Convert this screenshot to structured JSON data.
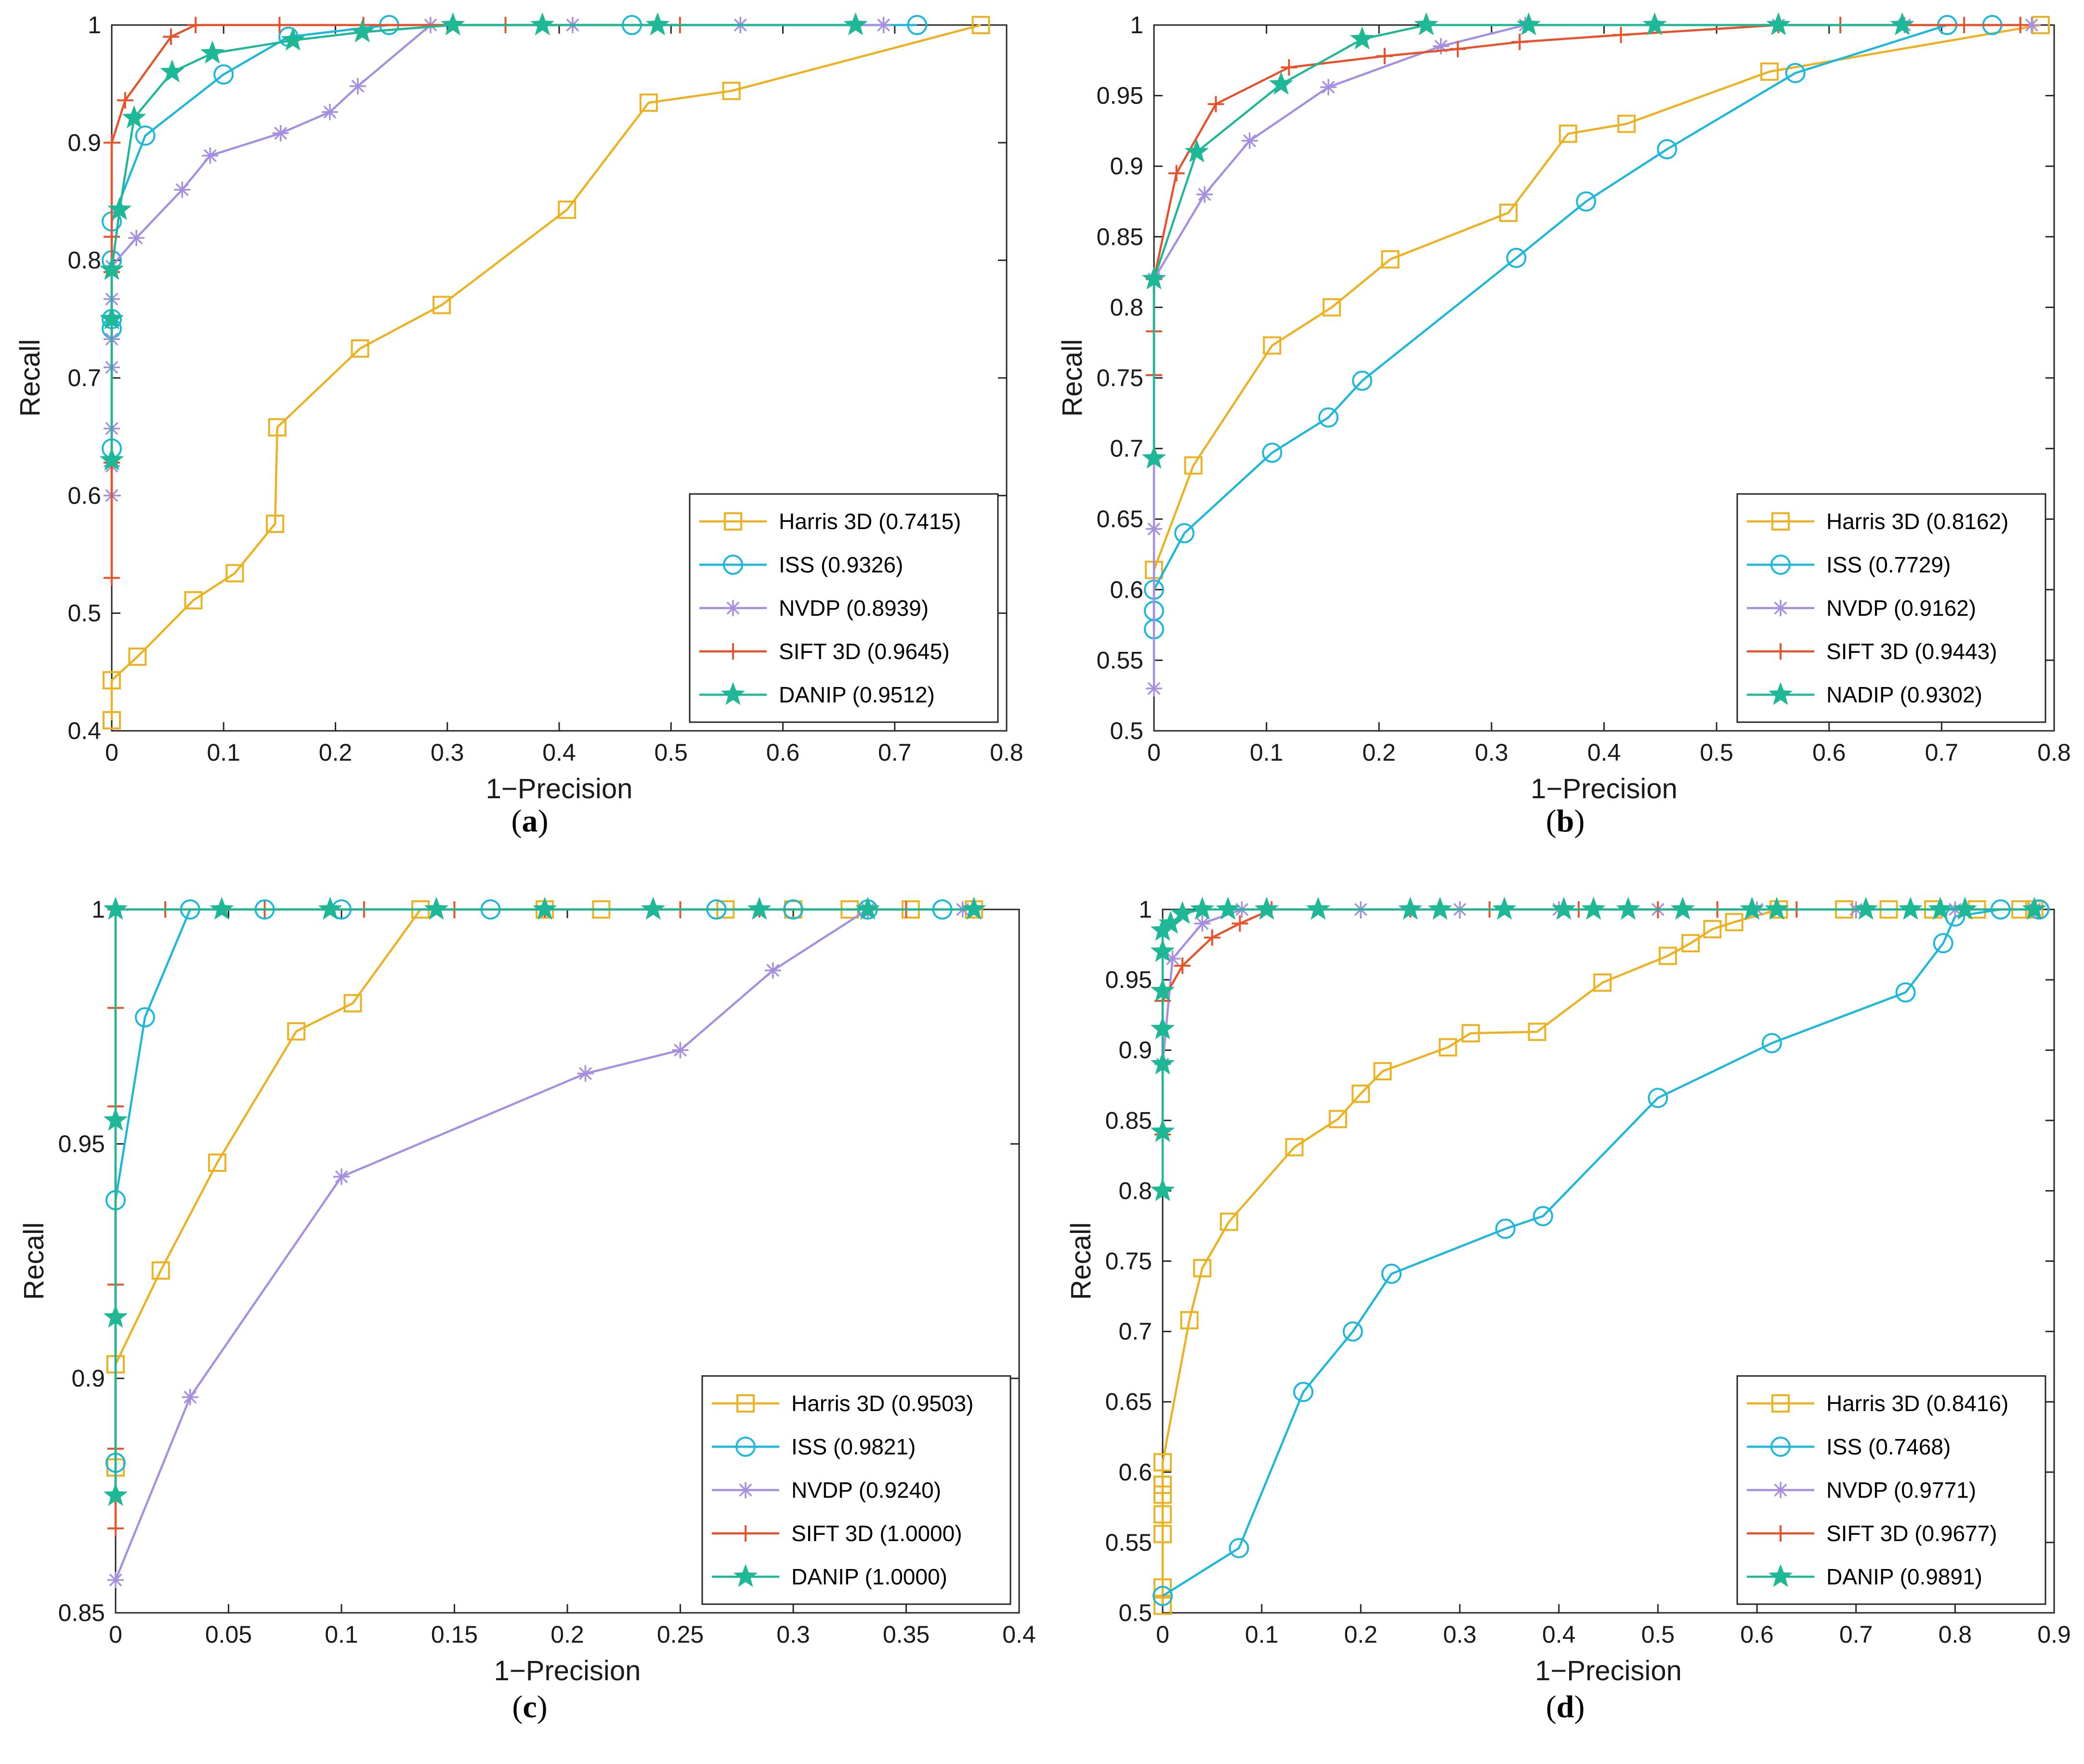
{
  "colors": {
    "harris": "#EDB120",
    "iss": "#1CB8DC",
    "nvdp": "#A68FE0",
    "sift": "#E8522A",
    "danip": "#1FB896"
  },
  "chart_data": [
    {
      "type": "line",
      "caption": "a",
      "xlabel": "1−Precision",
      "ylabel": "Recall",
      "xlim": [
        0,
        0.8
      ],
      "ylim": [
        0.4,
        1.0
      ],
      "xticks": [
        0,
        0.1,
        0.2,
        0.3,
        0.4,
        0.5,
        0.6,
        0.7,
        0.8
      ],
      "xtick_labels": [
        "0",
        "0.1",
        "0.2",
        "0.3",
        "0.4",
        "0.5",
        "0.6",
        "0.7",
        "0.8"
      ],
      "yticks": [
        0.4,
        0.5,
        0.6,
        0.7,
        0.8,
        0.9,
        1.0
      ],
      "ytick_labels": [
        "0.4",
        "0.5",
        "0.6",
        "0.7",
        "0.8",
        "0.9",
        "1"
      ],
      "legend_position": "bottom-right",
      "series": [
        {
          "name": "Harris 3D (0.7415)",
          "marker": "square",
          "color_key": "harris",
          "x": [
            0,
            0,
            0.023,
            0.073,
            0.11,
            0.146,
            0.148,
            0.222,
            0.295,
            0.407,
            0.48,
            0.554,
            0.777
          ],
          "y": [
            0.409,
            0.443,
            0.463,
            0.511,
            0.534,
            0.576,
            0.658,
            0.725,
            0.762,
            0.843,
            0.934,
            0.944,
            1.0
          ]
        },
        {
          "name": "ISS (0.9326)",
          "marker": "circle",
          "color_key": "iss",
          "x": [
            0,
            0,
            0,
            0,
            0,
            0.03,
            0.1,
            0.158,
            0.248,
            0.465,
            0.72
          ],
          "y": [
            0.64,
            0.742,
            0.75,
            0.8,
            0.833,
            0.906,
            0.958,
            0.99,
            1.0,
            1.0,
            1.0
          ]
        },
        {
          "name": "NVDP (0.8939)",
          "marker": "asterisk",
          "color_key": "nvdp",
          "x": [
            0,
            0,
            0,
            0,
            0,
            0,
            0,
            0.022,
            0.063,
            0.088,
            0.151,
            0.195,
            0.22,
            0.285,
            0.412,
            0.562,
            0.69
          ],
          "y": [
            0.6,
            0.625,
            0.657,
            0.709,
            0.733,
            0.767,
            0.795,
            0.819,
            0.86,
            0.889,
            0.908,
            0.926,
            0.948,
            1.0,
            1.0,
            1.0,
            1.0
          ]
        },
        {
          "name": "SIFT 3D (0.9645)",
          "marker": "plus",
          "color_key": "sift",
          "x": [
            0,
            0,
            0,
            0,
            0,
            0.012,
            0.053,
            0.075,
            0.15,
            0.225,
            0.352,
            0.508
          ],
          "y": [
            0.53,
            0.628,
            0.79,
            0.82,
            0.9,
            0.936,
            0.99,
            1.0,
            1.0,
            1.0,
            1.0,
            1.0
          ]
        },
        {
          "name": "DANIP (0.9512)",
          "marker": "star",
          "color_key": "danip",
          "x": [
            0,
            0,
            0,
            0.007,
            0.02,
            0.054,
            0.09,
            0.162,
            0.224,
            0.305,
            0.385,
            0.488,
            0.665
          ],
          "y": [
            0.63,
            0.75,
            0.792,
            0.843,
            0.921,
            0.96,
            0.976,
            0.987,
            0.994,
            1.0,
            1.0,
            1.0,
            1.0
          ]
        }
      ]
    },
    {
      "type": "line",
      "caption": "b",
      "xlabel": "1−Precision",
      "ylabel": "Recall",
      "xlim": [
        0,
        0.8
      ],
      "ylim": [
        0.5,
        1.0
      ],
      "xticks": [
        0,
        0.1,
        0.2,
        0.3,
        0.4,
        0.5,
        0.6,
        0.7,
        0.8
      ],
      "xtick_labels": [
        "0",
        "0.1",
        "0.2",
        "0.3",
        "0.4",
        "0.5",
        "0.6",
        "0.7",
        "0.8"
      ],
      "yticks": [
        0.5,
        0.55,
        0.6,
        0.65,
        0.7,
        0.75,
        0.8,
        0.85,
        0.9,
        0.95,
        1.0
      ],
      "ytick_labels": [
        "0.5",
        "0.55",
        "0.6",
        "0.65",
        "0.7",
        "0.75",
        "0.8",
        "0.85",
        "0.9",
        "0.95",
        "1"
      ],
      "legend_position": "bottom-right",
      "series": [
        {
          "name": "Harris 3D (0.8162)",
          "marker": "square",
          "color_key": "harris",
          "x": [
            0,
            0.035,
            0.105,
            0.158,
            0.21,
            0.315,
            0.368,
            0.42,
            0.547,
            0.788
          ],
          "y": [
            0.614,
            0.688,
            0.773,
            0.8,
            0.834,
            0.867,
            0.923,
            0.93,
            0.967,
            1.0
          ]
        },
        {
          "name": "ISS (0.7729)",
          "marker": "circle",
          "color_key": "iss",
          "x": [
            0,
            0,
            0,
            0.027,
            0.105,
            0.155,
            0.185,
            0.322,
            0.384,
            0.456,
            0.57,
            0.705,
            0.745
          ],
          "y": [
            0.572,
            0.585,
            0.6,
            0.64,
            0.697,
            0.722,
            0.748,
            0.835,
            0.875,
            0.912,
            0.966,
            1.0,
            1.0
          ]
        },
        {
          "name": "NVDP (0.9162)",
          "marker": "asterisk",
          "color_key": "nvdp",
          "x": [
            0,
            0,
            0,
            0.045,
            0.085,
            0.155,
            0.255,
            0.33,
            0.555,
            0.667,
            0.78
          ],
          "y": [
            0.53,
            0.643,
            0.82,
            0.88,
            0.918,
            0.956,
            0.985,
            1.0,
            1.0,
            1.0,
            1.0
          ]
        },
        {
          "name": "SIFT 3D (0.9443)",
          "marker": "plus",
          "color_key": "sift",
          "x": [
            0,
            0,
            0,
            0.02,
            0.055,
            0.12,
            0.205,
            0.27,
            0.325,
            0.415,
            0.555,
            0.61,
            0.72,
            0.77
          ],
          "y": [
            0.752,
            0.783,
            0.82,
            0.895,
            0.944,
            0.97,
            0.978,
            0.983,
            0.988,
            0.993,
            1.0,
            1.0,
            1.0,
            1.0
          ]
        },
        {
          "name": "NADIP (0.9302)",
          "marker": "star",
          "color_key": "danip",
          "x": [
            0,
            0,
            0.038,
            0.113,
            0.185,
            0.242,
            0.333,
            0.445,
            0.555,
            0.665
          ],
          "y": [
            0.693,
            0.82,
            0.91,
            0.958,
            0.99,
            1.0,
            1.0,
            1.0,
            1.0,
            1.0
          ]
        }
      ]
    },
    {
      "type": "line",
      "caption": "c",
      "xlabel": "1−Precision",
      "ylabel": "Recall",
      "xlim": [
        0,
        0.4
      ],
      "ylim": [
        0.85,
        1.0
      ],
      "xticks": [
        0,
        0.05,
        0.1,
        0.15,
        0.2,
        0.25,
        0.3,
        0.35,
        0.4
      ],
      "xtick_labels": [
        "0",
        "0.05",
        "0.1",
        "0.15",
        "0.2",
        "0.25",
        "0.3",
        "0.35",
        "0.4"
      ],
      "yticks": [
        0.85,
        0.9,
        0.95,
        1.0
      ],
      "ytick_labels": [
        "0.85",
        "0.9",
        "0.95",
        "1"
      ],
      "legend_position": "bottom-right",
      "series": [
        {
          "name": "Harris 3D (0.9503)",
          "marker": "square",
          "color_key": "harris",
          "x": [
            0,
            0,
            0.02,
            0.045,
            0.08,
            0.105,
            0.135,
            0.19,
            0.215,
            0.27,
            0.3,
            0.325,
            0.352,
            0.38
          ],
          "y": [
            0.881,
            0.903,
            0.923,
            0.946,
            0.974,
            0.98,
            1.0,
            1.0,
            1.0,
            1.0,
            1.0,
            1.0,
            1.0,
            1.0
          ]
        },
        {
          "name": "ISS (0.9821)",
          "marker": "circle",
          "color_key": "iss",
          "x": [
            0,
            0,
            0.013,
            0.033,
            0.066,
            0.1,
            0.166,
            0.266,
            0.3,
            0.333,
            0.366
          ],
          "y": [
            0.882,
            0.938,
            0.977,
            1.0,
            1.0,
            1.0,
            1.0,
            1.0,
            1.0,
            1.0,
            1.0
          ]
        },
        {
          "name": "NVDP (0.9240)",
          "marker": "asterisk",
          "color_key": "nvdp",
          "x": [
            0,
            0.033,
            0.1,
            0.208,
            0.25,
            0.291,
            0.333,
            0.375
          ],
          "y": [
            0.857,
            0.896,
            0.943,
            0.965,
            0.97,
            0.987,
            1.0,
            1.0
          ]
        },
        {
          "name": "SIFT 3D (1.0000)",
          "marker": "plus",
          "color_key": "sift",
          "x": [
            0,
            0,
            0,
            0,
            0,
            0,
            0.022,
            0.066,
            0.11,
            0.15,
            0.19,
            0.25,
            0.285,
            0.35
          ],
          "y": [
            0.868,
            0.885,
            0.92,
            0.958,
            0.979,
            1.0,
            1.0,
            1.0,
            1.0,
            1.0,
            1.0,
            1.0,
            1.0,
            1.0
          ]
        },
        {
          "name": "DANIP (1.0000)",
          "marker": "star",
          "color_key": "danip",
          "x": [
            0,
            0,
            0,
            0,
            0.047,
            0.095,
            0.142,
            0.19,
            0.238,
            0.285,
            0.333,
            0.38
          ],
          "y": [
            0.875,
            0.913,
            0.955,
            1.0,
            1.0,
            1.0,
            1.0,
            1.0,
            1.0,
            1.0,
            1.0,
            1.0
          ]
        }
      ]
    },
    {
      "type": "line",
      "caption": "d",
      "xlabel": "1−Precision",
      "ylabel": "Recall",
      "xlim": [
        0,
        0.9
      ],
      "ylim": [
        0.5,
        1.0
      ],
      "xticks": [
        0,
        0.1,
        0.2,
        0.3,
        0.4,
        0.5,
        0.6,
        0.7,
        0.8,
        0.9
      ],
      "xtick_labels": [
        "0",
        "0.1",
        "0.2",
        "0.3",
        "0.4",
        "0.5",
        "0.6",
        "0.7",
        "0.8",
        "0.9"
      ],
      "yticks": [
        0.5,
        0.55,
        0.6,
        0.65,
        0.7,
        0.75,
        0.8,
        0.85,
        0.9,
        0.95,
        1.0
      ],
      "ytick_labels": [
        "0.5",
        "0.55",
        "0.6",
        "0.65",
        "0.7",
        "0.75",
        "0.8",
        "0.85",
        "0.9",
        "0.95",
        "1"
      ],
      "legend_position": "bottom-right",
      "series": [
        {
          "name": "Harris 3D (0.8416)",
          "marker": "square",
          "color_key": "harris",
          "x": [
            0,
            0,
            0,
            0,
            0,
            0,
            0,
            0.027,
            0.04,
            0.067,
            0.133,
            0.177,
            0.2,
            0.222,
            0.288,
            0.311,
            0.378,
            0.444,
            0.51,
            0.533,
            0.555,
            0.577,
            0.622,
            0.688,
            0.733,
            0.778,
            0.822,
            0.866,
            0.88
          ],
          "y": [
            0.505,
            0.518,
            0.556,
            0.57,
            0.584,
            0.591,
            0.607,
            0.708,
            0.745,
            0.778,
            0.831,
            0.851,
            0.869,
            0.885,
            0.902,
            0.912,
            0.913,
            0.948,
            0.967,
            0.976,
            0.986,
            0.991,
            1.0,
            1.0,
            1.0,
            1.0,
            1.0,
            1.0,
            1.0
          ]
        },
        {
          "name": "ISS (0.7468)",
          "marker": "circle",
          "color_key": "iss",
          "x": [
            0,
            0.077,
            0.142,
            0.192,
            0.231,
            0.346,
            0.384,
            0.5,
            0.615,
            0.75,
            0.788,
            0.8,
            0.846,
            0.885
          ],
          "y": [
            0.512,
            0.546,
            0.657,
            0.7,
            0.741,
            0.773,
            0.782,
            0.866,
            0.905,
            0.941,
            0.976,
            0.995,
            1.0,
            1.0
          ]
        },
        {
          "name": "NVDP (0.9771)",
          "marker": "asterisk",
          "color_key": "nvdp",
          "x": [
            0,
            0.01,
            0.04,
            0.08,
            0.2,
            0.3,
            0.4,
            0.5,
            0.6,
            0.7,
            0.8,
            0.88
          ],
          "y": [
            0.89,
            0.965,
            0.99,
            1.0,
            1.0,
            1.0,
            1.0,
            1.0,
            1.0,
            1.0,
            1.0,
            1.0
          ]
        },
        {
          "name": "SIFT 3D (0.9677)",
          "marker": "plus",
          "color_key": "sift",
          "x": [
            0,
            0,
            0.02,
            0.05,
            0.078,
            0.11,
            0.25,
            0.33,
            0.42,
            0.5,
            0.56,
            0.64
          ],
          "y": [
            0.84,
            0.935,
            0.96,
            0.98,
            0.99,
            1.0,
            1.0,
            1.0,
            1.0,
            1.0,
            1.0,
            1.0
          ]
        },
        {
          "name": "DANIP (0.9891)",
          "marker": "star",
          "color_key": "danip",
          "x": [
            0,
            0,
            0,
            0,
            0,
            0,
            0,
            0.008,
            0.02,
            0.04,
            0.066,
            0.105,
            0.157,
            0.25,
            0.28,
            0.345,
            0.405,
            0.435,
            0.47,
            0.525,
            0.595,
            0.62,
            0.71,
            0.755,
            0.785,
            0.81,
            0.88
          ],
          "y": [
            0.8,
            0.842,
            0.89,
            0.915,
            0.942,
            0.97,
            0.985,
            0.99,
            0.997,
            1.0,
            1.0,
            1.0,
            1.0,
            1.0,
            1.0,
            1.0,
            1.0,
            1.0,
            1.0,
            1.0,
            1.0,
            1.0,
            1.0,
            1.0,
            1.0,
            1.0,
            1.0
          ]
        }
      ]
    }
  ]
}
